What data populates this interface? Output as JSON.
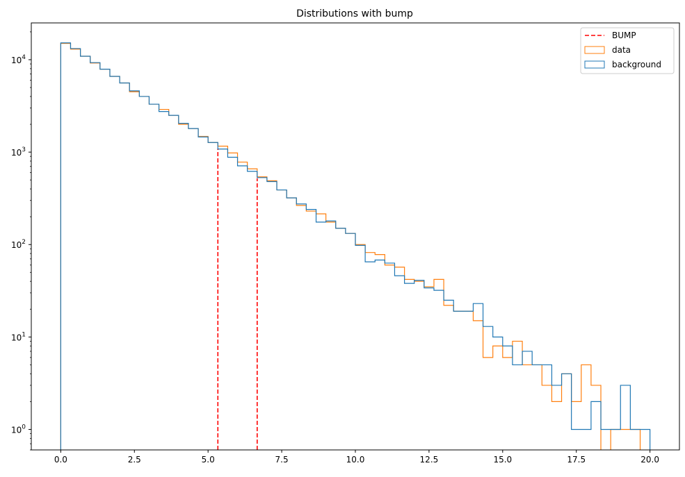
{
  "chart_data": {
    "type": "histogram",
    "title": "Distributions with bump",
    "xlabel": "",
    "ylabel": "",
    "xlim": [
      -1.0,
      21.0
    ],
    "ylim": [
      0.6,
      25000
    ],
    "yscale": "log",
    "grid": false,
    "legend": {
      "placement": "top-right",
      "entries": [
        "BUMP",
        "data",
        "background"
      ]
    },
    "xticks": [
      0.0,
      2.5,
      5.0,
      7.5,
      10.0,
      12.5,
      15.0,
      17.5,
      20.0
    ],
    "xtick_labels": [
      "0.0",
      "2.5",
      "5.0",
      "7.5",
      "10.0",
      "12.5",
      "15.0",
      "17.5",
      "20.0"
    ],
    "yticks": [
      {
        "value": 1,
        "base": "10",
        "exp": "0"
      },
      {
        "value": 10,
        "base": "10",
        "exp": "1"
      },
      {
        "value": 100,
        "base": "10",
        "exp": "2"
      },
      {
        "value": 1000,
        "base": "10",
        "exp": "3"
      },
      {
        "value": 10000,
        "base": "10",
        "exp": "4"
      }
    ],
    "bin_edges": [
      0.0,
      0.333,
      0.667,
      1.0,
      1.333,
      1.667,
      2.0,
      2.333,
      2.667,
      3.0,
      3.333,
      3.667,
      4.0,
      4.333,
      4.667,
      5.0,
      5.333,
      5.667,
      6.0,
      6.333,
      6.667,
      7.0,
      7.333,
      7.667,
      8.0,
      8.333,
      8.667,
      9.0,
      9.333,
      9.667,
      10.0,
      10.333,
      10.667,
      11.0,
      11.333,
      11.667,
      12.0,
      12.333,
      12.667,
      13.0,
      13.333,
      13.667,
      14.0,
      14.333,
      14.667,
      15.0,
      15.333,
      15.667,
      16.0,
      16.333,
      16.667,
      17.0,
      17.333,
      17.667,
      18.0,
      18.333,
      18.667,
      19.0,
      19.333,
      19.667,
      20.0
    ],
    "series": [
      {
        "name": "BUMP",
        "style": "dashed-vertical",
        "color": "#ff0000",
        "lines": [
          {
            "x": 5.333,
            "y": 1100
          },
          {
            "x": 6.667,
            "y": 520
          }
        ]
      },
      {
        "name": "data",
        "style": "step",
        "color": "#ff7f0e",
        "values": [
          15000,
          13000,
          10900,
          9200,
          7900,
          6600,
          5600,
          4500,
          4000,
          3300,
          2900,
          2500,
          2000,
          1800,
          1480,
          1270,
          1160,
          980,
          780,
          660,
          540,
          490,
          390,
          320,
          265,
          230,
          215,
          175,
          150,
          132,
          100,
          82,
          78,
          60,
          57,
          42,
          40,
          35,
          42,
          22,
          19,
          19,
          15,
          6,
          8,
          6,
          9,
          5,
          5,
          3,
          2,
          4,
          2,
          5,
          3,
          0.5,
          1,
          1,
          1,
          0.5
        ]
      },
      {
        "name": "background",
        "style": "step",
        "color": "#1f77b4",
        "values": [
          15200,
          13200,
          10900,
          9300,
          7900,
          6600,
          5600,
          4600,
          4000,
          3300,
          2750,
          2500,
          2050,
          1800,
          1460,
          1270,
          1080,
          880,
          710,
          620,
          530,
          480,
          390,
          320,
          275,
          240,
          175,
          180,
          150,
          132,
          98,
          65,
          68,
          63,
          46,
          38,
          41,
          34,
          32,
          25,
          19,
          19,
          23,
          13,
          10,
          8,
          5,
          7,
          5,
          5,
          3,
          4,
          1,
          1,
          2,
          1,
          1,
          3,
          1,
          1
        ]
      }
    ]
  }
}
